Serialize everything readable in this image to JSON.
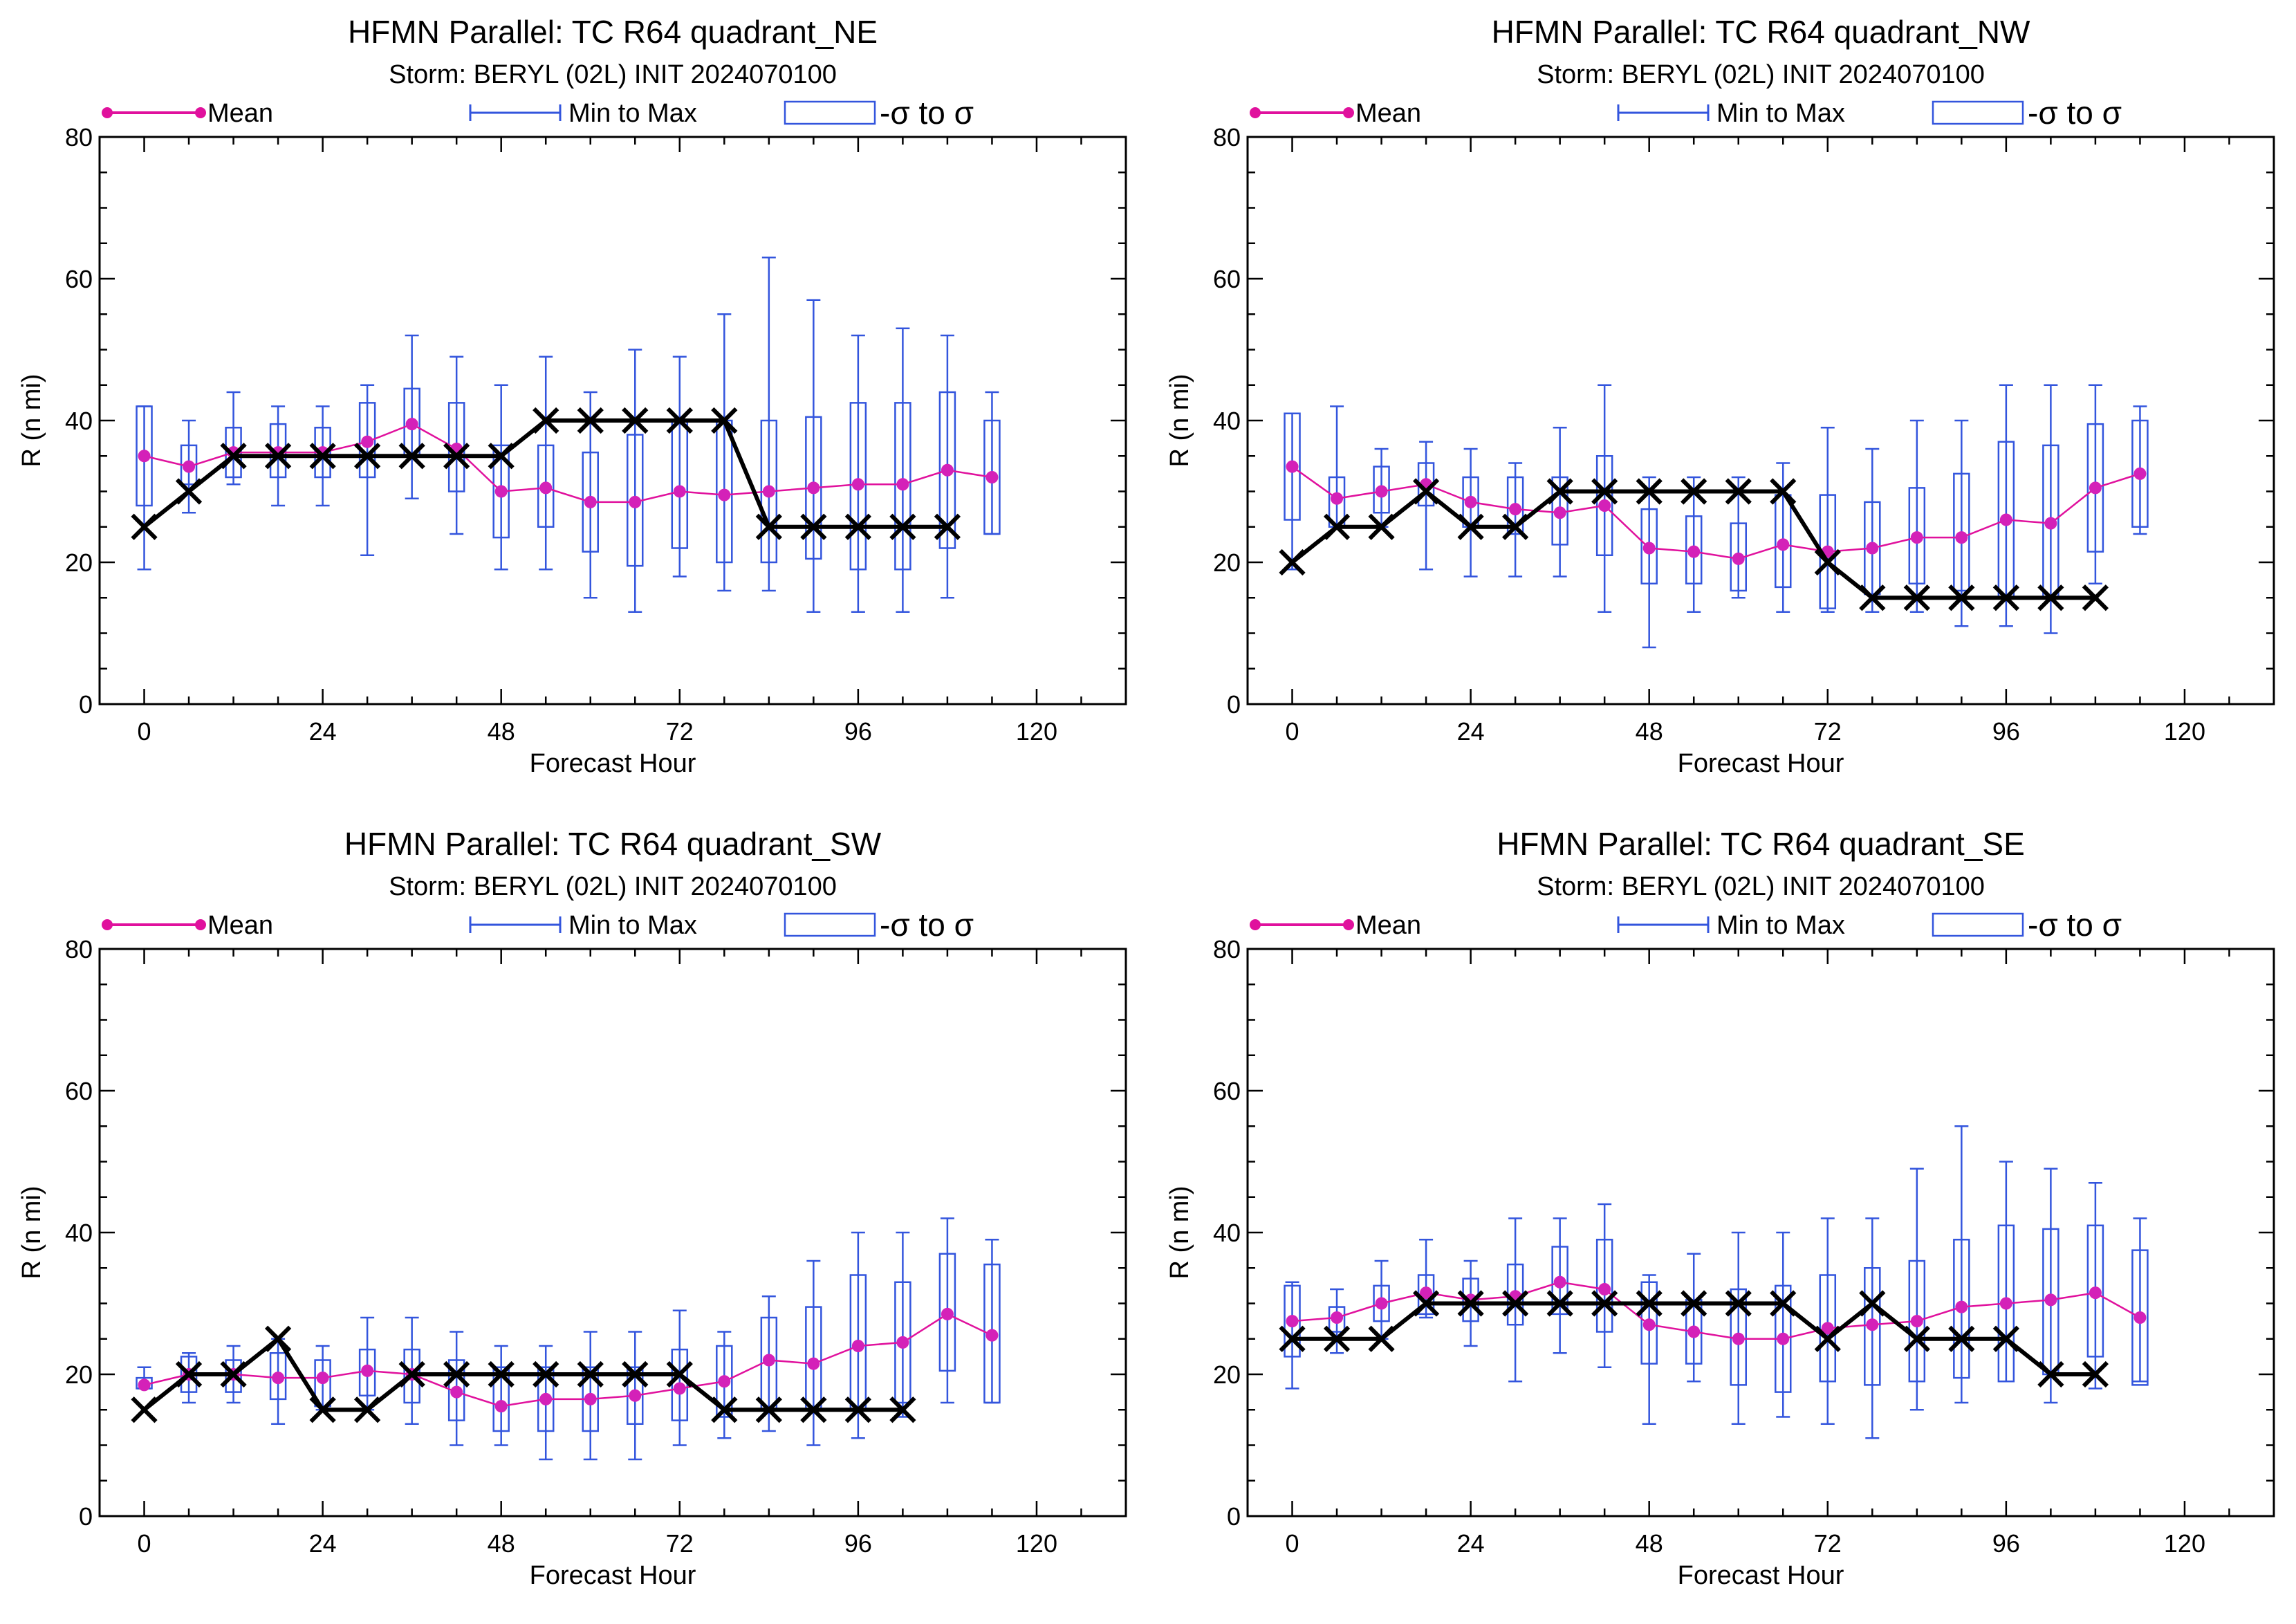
{
  "figure": {
    "legend": {
      "mean_label": "Mean",
      "minmax_label": "Min to Max",
      "sigma_label": "-σ to σ"
    },
    "colors": {
      "mean": "#e0119d",
      "minmax": "#3355dd",
      "best_track": "#000000",
      "axes": "#000000"
    }
  },
  "chart_data": [
    {
      "type": "line",
      "title": "HFMN Parallel: TC  R64 quadrant_NE",
      "subtitle": "Storm: BERYL (02L) INIT 2024070100",
      "xlabel": "Forecast Hour",
      "ylabel": "R (n mi)",
      "xlim": [
        -6,
        132
      ],
      "ylim": [
        0,
        80
      ],
      "xticks": [
        0,
        24,
        48,
        72,
        96,
        120
      ],
      "yticks": [
        0,
        20,
        40,
        60,
        80
      ],
      "grid": false,
      "legend_position": "top",
      "series": [
        {
          "name": "Mean",
          "x": [
            0,
            6,
            12,
            18,
            24,
            30,
            36,
            42,
            48,
            54,
            60,
            66,
            72,
            78,
            84,
            90,
            96,
            102,
            108,
            114
          ],
          "values": [
            35,
            33.5,
            35.5,
            35.5,
            35.5,
            37,
            39.5,
            36,
            30,
            30.5,
            28.5,
            28.5,
            30,
            29.5,
            30,
            30.5,
            31,
            31,
            33,
            32
          ]
        },
        {
          "name": "Min to Max",
          "x": [
            0,
            6,
            12,
            18,
            24,
            30,
            36,
            42,
            48,
            54,
            60,
            66,
            72,
            78,
            84,
            90,
            96,
            102,
            108,
            114
          ],
          "min": [
            19,
            27,
            31,
            28,
            28,
            21,
            29,
            24,
            19,
            19,
            15,
            13,
            18,
            16,
            16,
            13,
            13,
            13,
            15,
            24
          ],
          "max": [
            42,
            40,
            44,
            42,
            42,
            45,
            52,
            49,
            45,
            49,
            44,
            50,
            49,
            55,
            63,
            57,
            52,
            53,
            52,
            44
          ]
        },
        {
          "name": "-σ to σ",
          "x": [
            0,
            6,
            12,
            18,
            24,
            30,
            36,
            42,
            48,
            54,
            60,
            66,
            72,
            78,
            84,
            90,
            96,
            102,
            108,
            114
          ],
          "low": [
            28,
            31,
            32,
            32,
            32,
            32,
            35,
            30,
            23.5,
            25,
            21.5,
            19.5,
            22,
            20,
            20,
            20.5,
            19,
            19,
            22,
            24
          ],
          "high": [
            42,
            36.5,
            39,
            39.5,
            39,
            42.5,
            44.5,
            42.5,
            36.5,
            36.5,
            35.5,
            38,
            40,
            40,
            40,
            40.5,
            42.5,
            42.5,
            44,
            40
          ]
        },
        {
          "x": [
            0,
            6,
            12,
            18,
            24,
            30,
            36,
            42,
            48,
            54,
            60,
            66,
            72,
            78,
            84,
            90,
            96,
            102,
            108
          ],
          "values": [
            25,
            30,
            35,
            35,
            35,
            35,
            35,
            35,
            35,
            40,
            40,
            40,
            40,
            40,
            25,
            25,
            25,
            25,
            25
          ]
        }
      ]
    },
    {
      "type": "line",
      "title": "HFMN Parallel: TC  R64 quadrant_NW",
      "subtitle": "Storm: BERYL (02L) INIT 2024070100",
      "xlabel": "Forecast Hour",
      "ylabel": "R (n mi)",
      "xlim": [
        -6,
        132
      ],
      "ylim": [
        0,
        80
      ],
      "xticks": [
        0,
        24,
        48,
        72,
        96,
        120
      ],
      "yticks": [
        0,
        20,
        40,
        60,
        80
      ],
      "grid": false,
      "legend_position": "top",
      "series": [
        {
          "name": "Mean",
          "x": [
            0,
            6,
            12,
            18,
            24,
            30,
            36,
            42,
            48,
            54,
            60,
            66,
            72,
            78,
            84,
            90,
            96,
            102,
            108,
            114
          ],
          "values": [
            33.5,
            29,
            30,
            31,
            28.5,
            27.5,
            27,
            28,
            22,
            21.5,
            20.5,
            22.5,
            21.5,
            22,
            23.5,
            23.5,
            26,
            25.5,
            30.5,
            32.5
          ]
        },
        {
          "name": "Min to Max",
          "x": [
            0,
            6,
            12,
            18,
            24,
            30,
            36,
            42,
            48,
            54,
            60,
            66,
            72,
            78,
            84,
            90,
            96,
            102,
            108,
            114
          ],
          "min": [
            19,
            25,
            25,
            19,
            18,
            18,
            18,
            13,
            8,
            13,
            15,
            13,
            13,
            13,
            13,
            11,
            11,
            10,
            17,
            24
          ],
          "max": [
            41,
            42,
            36,
            37,
            36,
            34,
            39,
            45,
            32,
            32,
            32,
            34,
            39,
            36,
            40,
            40,
            45,
            45,
            45,
            42
          ]
        },
        {
          "name": "-σ to σ",
          "x": [
            0,
            6,
            12,
            18,
            24,
            30,
            36,
            42,
            48,
            54,
            60,
            66,
            72,
            78,
            84,
            90,
            96,
            102,
            108,
            114
          ],
          "low": [
            26,
            25,
            27,
            28,
            25,
            24,
            22.5,
            21,
            17,
            17,
            16,
            16.5,
            13.5,
            15.5,
            17,
            16,
            15,
            15,
            21.5,
            25
          ],
          "high": [
            41,
            32,
            33.5,
            34,
            32,
            32,
            32,
            35,
            27.5,
            26.5,
            25.5,
            29.5,
            29.5,
            28.5,
            30.5,
            32.5,
            37,
            36.5,
            39.5,
            40
          ]
        },
        {
          "x": [
            0,
            6,
            12,
            18,
            24,
            30,
            36,
            42,
            48,
            54,
            60,
            66,
            72,
            78,
            84,
            90,
            96,
            102,
            108
          ],
          "values": [
            20,
            25,
            25,
            30,
            25,
            25,
            30,
            30,
            30,
            30,
            30,
            30,
            20,
            15,
            15,
            15,
            15,
            15,
            15
          ]
        }
      ]
    },
    {
      "type": "line",
      "title": "HFMN Parallel: TC  R64 quadrant_SW",
      "subtitle": "Storm: BERYL (02L) INIT 2024070100",
      "xlabel": "Forecast Hour",
      "ylabel": "R (n mi)",
      "xlim": [
        -6,
        132
      ],
      "ylim": [
        0,
        80
      ],
      "xticks": [
        0,
        24,
        48,
        72,
        96,
        120
      ],
      "yticks": [
        0,
        20,
        40,
        60,
        80
      ],
      "grid": false,
      "legend_position": "top",
      "series": [
        {
          "name": "Mean",
          "x": [
            0,
            6,
            12,
            18,
            24,
            30,
            36,
            42,
            48,
            54,
            60,
            66,
            72,
            78,
            84,
            90,
            96,
            102,
            108,
            114
          ],
          "values": [
            18.5,
            20,
            20,
            19.5,
            19.5,
            20.5,
            20,
            17.5,
            15.5,
            16.5,
            16.5,
            17,
            18,
            19,
            22,
            21.5,
            24,
            24.5,
            28.5,
            25.5
          ]
        },
        {
          "name": "Min to Max",
          "x": [
            0,
            6,
            12,
            18,
            24,
            30,
            36,
            42,
            48,
            54,
            60,
            66,
            72,
            78,
            84,
            90,
            96,
            102,
            108,
            114
          ],
          "min": [
            18,
            16,
            16,
            13,
            15,
            15,
            13,
            10,
            10,
            8,
            8,
            8,
            10,
            11,
            12,
            10,
            11,
            14,
            16,
            16
          ],
          "max": [
            21,
            23,
            24,
            25,
            24,
            28,
            28,
            26,
            24,
            24,
            26,
            26,
            29,
            26,
            31,
            36,
            40,
            40,
            42,
            39
          ]
        },
        {
          "name": "-σ to σ",
          "x": [
            0,
            6,
            12,
            18,
            24,
            30,
            36,
            42,
            48,
            54,
            60,
            66,
            72,
            78,
            84,
            90,
            96,
            102,
            108,
            114
          ],
          "low": [
            18,
            17.5,
            17.5,
            16.5,
            15.5,
            17,
            16,
            13.5,
            12,
            12,
            12,
            13,
            13.5,
            14,
            15,
            15,
            15,
            16,
            20.5,
            16
          ],
          "high": [
            19.5,
            22.5,
            22,
            23,
            22,
            23.5,
            23.5,
            22,
            21,
            21,
            21,
            21,
            23.5,
            24,
            28,
            29.5,
            34,
            33,
            37,
            35.5
          ]
        },
        {
          "x": [
            0,
            6,
            12,
            18,
            24,
            30,
            36,
            42,
            48,
            54,
            60,
            66,
            72,
            78,
            84,
            90,
            96,
            102
          ],
          "values": [
            15,
            20,
            20,
            25,
            15,
            15,
            20,
            20,
            20,
            20,
            20,
            20,
            20,
            15,
            15,
            15,
            15,
            15
          ]
        }
      ]
    },
    {
      "type": "line",
      "title": "HFMN Parallel: TC  R64 quadrant_SE",
      "subtitle": "Storm: BERYL (02L) INIT 2024070100",
      "xlabel": "Forecast Hour",
      "ylabel": "R (n mi)",
      "xlim": [
        -6,
        132
      ],
      "ylim": [
        0,
        80
      ],
      "xticks": [
        0,
        24,
        48,
        72,
        96,
        120
      ],
      "yticks": [
        0,
        20,
        40,
        60,
        80
      ],
      "grid": false,
      "legend_position": "top",
      "series": [
        {
          "name": "Mean",
          "x": [
            0,
            6,
            12,
            18,
            24,
            30,
            36,
            42,
            48,
            54,
            60,
            66,
            72,
            78,
            84,
            90,
            96,
            102,
            108,
            114
          ],
          "values": [
            27.5,
            28,
            30,
            31.5,
            30.5,
            31,
            33,
            32,
            27,
            26,
            25,
            25,
            26.5,
            27,
            27.5,
            29.5,
            30,
            30.5,
            31.5,
            28
          ]
        },
        {
          "name": "Min to Max",
          "x": [
            0,
            6,
            12,
            18,
            24,
            30,
            36,
            42,
            48,
            54,
            60,
            66,
            72,
            78,
            84,
            90,
            96,
            102,
            108,
            114
          ],
          "min": [
            18,
            23,
            25,
            28,
            24,
            19,
            23,
            21,
            13,
            19,
            13,
            14,
            13,
            11,
            15,
            16,
            19,
            16,
            18,
            19
          ],
          "max": [
            33,
            32,
            36,
            39,
            36,
            42,
            42,
            44,
            34,
            37,
            40,
            40,
            42,
            42,
            49,
            55,
            50,
            49,
            47,
            42
          ]
        },
        {
          "name": "-σ to σ",
          "x": [
            0,
            6,
            12,
            18,
            24,
            30,
            36,
            42,
            48,
            54,
            60,
            66,
            72,
            78,
            84,
            90,
            96,
            102,
            108,
            114
          ],
          "low": [
            22.5,
            26,
            27.5,
            28.5,
            27.5,
            27,
            28.5,
            26,
            21.5,
            21.5,
            18.5,
            17.5,
            19,
            18.5,
            19,
            19.5,
            19,
            20,
            22.5,
            18.5
          ],
          "high": [
            32.5,
            29.5,
            32.5,
            34,
            33.5,
            35.5,
            38,
            39,
            33,
            30.5,
            32,
            32.5,
            34,
            35,
            36,
            39,
            41,
            40.5,
            41,
            37.5
          ]
        },
        {
          "x": [
            0,
            6,
            12,
            18,
            24,
            30,
            36,
            42,
            48,
            54,
            60,
            66,
            72,
            78,
            84,
            90,
            96,
            102,
            108
          ],
          "values": [
            25,
            25,
            25,
            30,
            30,
            30,
            30,
            30,
            30,
            30,
            30,
            30,
            25,
            30,
            25,
            25,
            25,
            20,
            20
          ]
        }
      ]
    }
  ]
}
